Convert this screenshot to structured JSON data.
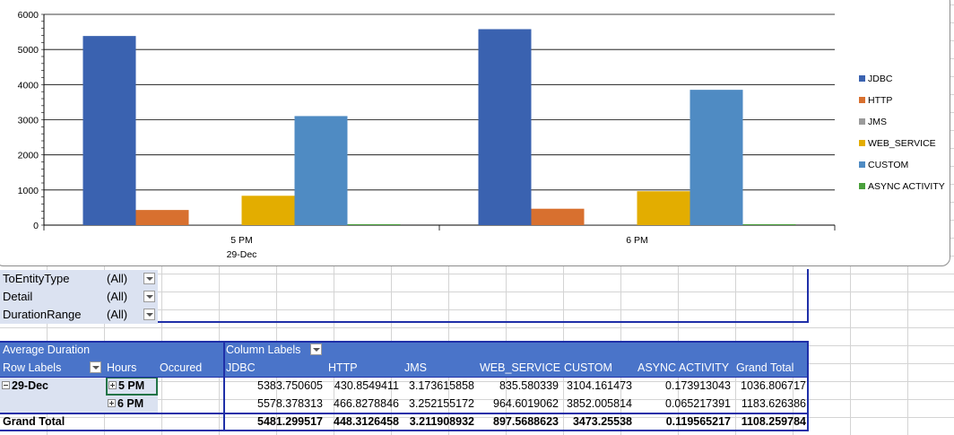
{
  "chart_data": {
    "type": "bar",
    "categories": [
      "5 PM",
      "6 PM"
    ],
    "group_label": "29-Dec",
    "ylim": [
      0,
      6000
    ],
    "yticks": [
      0,
      1000,
      2000,
      3000,
      4000,
      5000,
      6000
    ],
    "series": [
      {
        "name": "JDBC",
        "color": "#3a62b0",
        "values": [
          5383.750605,
          5578.378313
        ]
      },
      {
        "name": "HTTP",
        "color": "#d8702f",
        "values": [
          430.8549411,
          466.8278846
        ]
      },
      {
        "name": "JMS",
        "color": "#9b9b9b",
        "values": [
          3.173615858,
          3.252155172
        ]
      },
      {
        "name": "WEB_SERVICE",
        "color": "#e3ad00",
        "values": [
          835.580339,
          964.6019062
        ]
      },
      {
        "name": "CUSTOM",
        "color": "#4f8bc3",
        "values": [
          3104.161473,
          3852.005814
        ]
      },
      {
        "name": "ASYNC ACTIVITY",
        "color": "#4aa03c",
        "values": [
          0.173913043,
          0.065217391
        ]
      }
    ],
    "grid": true,
    "legend": "right"
  },
  "filters": [
    {
      "label": "ToEntityType",
      "value": "(All)"
    },
    {
      "label": "Detail",
      "value": "(All)"
    },
    {
      "label": "DurationRange",
      "value": "(All)"
    }
  ],
  "pivot": {
    "title": "Average Duration",
    "column_labels": "Column Labels",
    "row_labels": "Row Labels",
    "hours": "Hours",
    "occured": "Occured",
    "columns": [
      "JDBC",
      "HTTP",
      "JMS",
      "WEB_SERVICE",
      "CUSTOM",
      "ASYNC ACTIVITY",
      "Grand Total"
    ],
    "date": "29-Dec",
    "rows": [
      {
        "hour": "5 PM",
        "values": [
          "5383.750605",
          "430.8549411",
          "3.173615858",
          "835.580339",
          "3104.161473",
          "0.173913043",
          "1036.806717"
        ]
      },
      {
        "hour": "6 PM",
        "values": [
          "5578.378313",
          "466.8278846",
          "3.252155172",
          "964.6019062",
          "3852.005814",
          "0.065217391",
          "1183.626386"
        ]
      }
    ],
    "grand_total_label": "Grand Total",
    "grand_total": [
      "5481.299517",
      "448.3126458",
      "3.211908932",
      "897.5688623",
      "3473.25538",
      "0.119565217",
      "1108.259784"
    ]
  }
}
